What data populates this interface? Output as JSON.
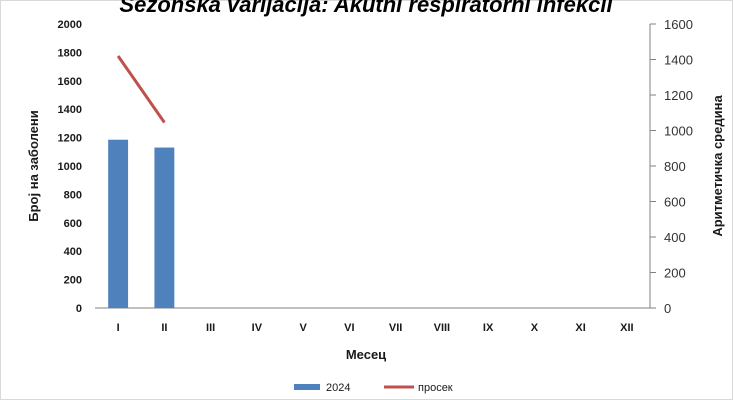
{
  "chart_data": {
    "type": "bar",
    "title": "Sezonska varijacija: Akutni respiratorni infekcii",
    "categories": [
      "I",
      "II",
      "III",
      "IV",
      "V",
      "VI",
      "VII",
      "VIII",
      "IX",
      "X",
      "XI",
      "XII"
    ],
    "series": [
      {
        "name": "2024",
        "kind": "bar",
        "axis": "left",
        "color": "#4f81bd",
        "values": [
          1185,
          1130,
          null,
          null,
          null,
          null,
          null,
          null,
          null,
          null,
          null,
          null
        ]
      },
      {
        "name": "просек",
        "kind": "line",
        "axis": "right",
        "color": "#c0504d",
        "values": [
          1420,
          1045,
          null,
          null,
          null,
          null,
          null,
          null,
          null,
          null,
          null,
          null
        ]
      }
    ],
    "xlabel": "Месец",
    "ylabel": "Број на заболени",
    "y2label": "Аритметичка средина",
    "ylim": [
      0,
      2000
    ],
    "y2lim": [
      0,
      1600
    ],
    "yticks": [
      "0",
      "200",
      "400",
      "600",
      "800",
      "1000",
      "1200",
      "1400",
      "1600",
      "1800",
      "2000"
    ],
    "y2ticks": [
      "0",
      "200",
      "400",
      "600",
      "800",
      "1000",
      "1200",
      "1400",
      "1600"
    ],
    "legend": "bottom",
    "grid": false
  }
}
